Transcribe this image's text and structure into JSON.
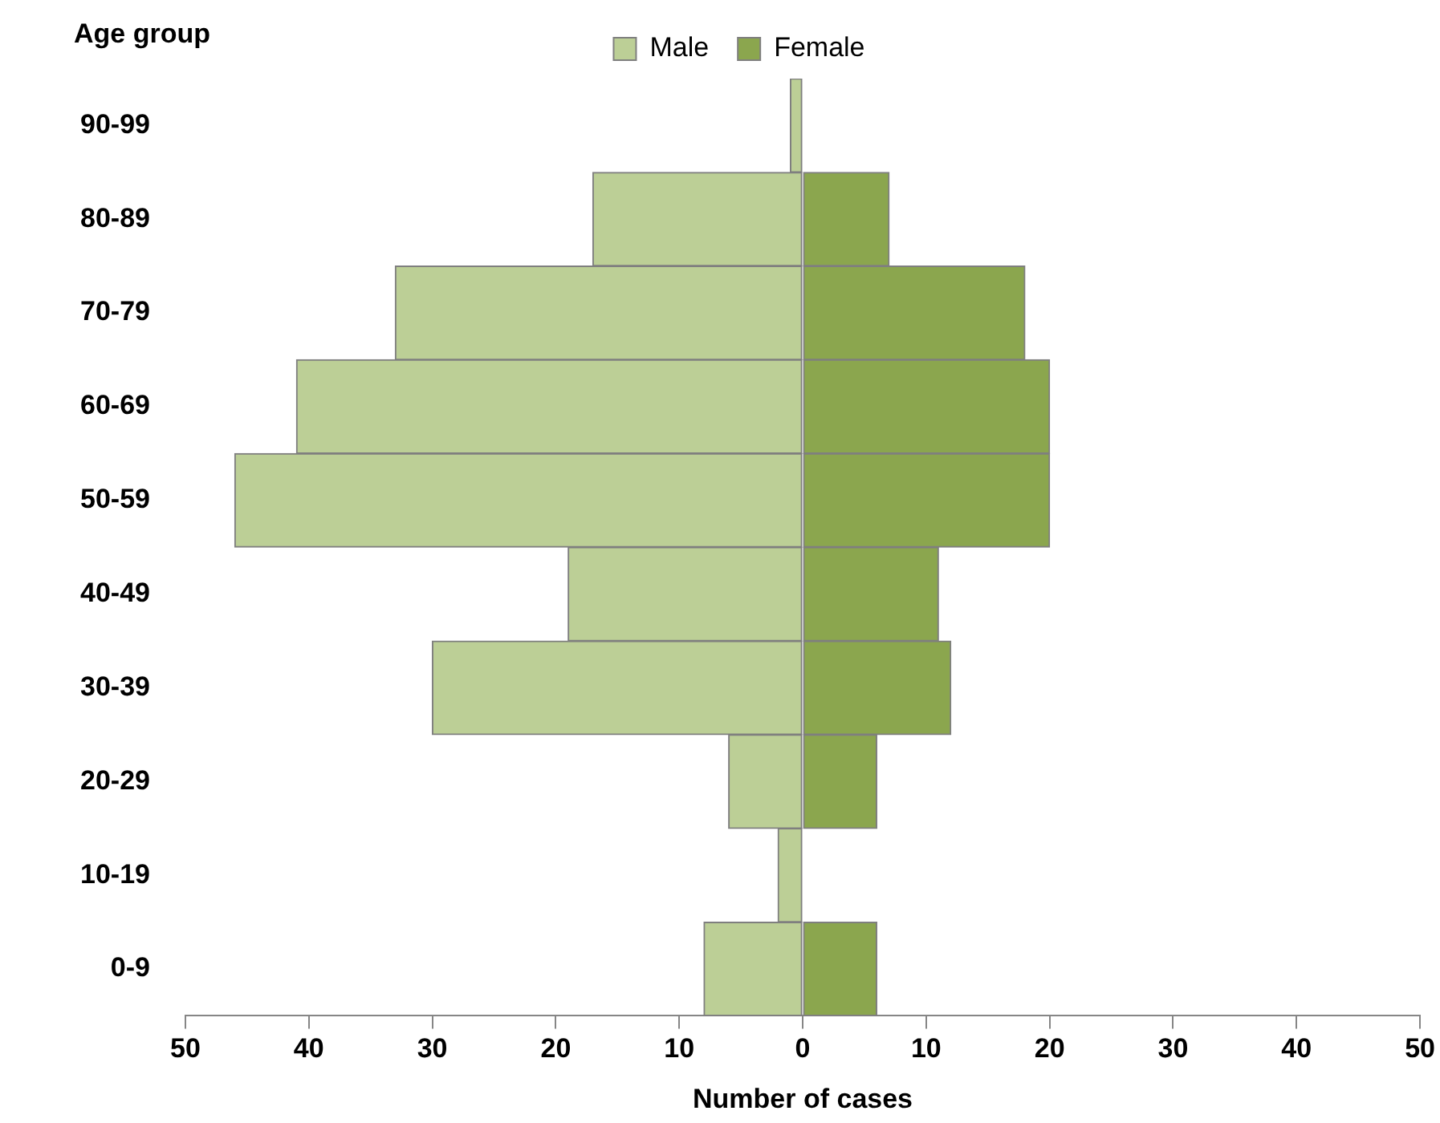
{
  "chart_data": {
    "type": "bar",
    "orientation": "horizontal",
    "stacked": true,
    "ylabel": "Age group",
    "xlabel": "Number of cases",
    "categories": [
      "90-99",
      "80-89",
      "70-79",
      "60-69",
      "50-59",
      "40-49",
      "30-39",
      "20-29",
      "10-19",
      "0-9"
    ],
    "series": [
      {
        "name": "Male",
        "color": "#bccf96",
        "values": [
          -1,
          -17,
          -33,
          -41,
          -46,
          -19,
          -30,
          -6,
          -2,
          -8
        ]
      },
      {
        "name": "Female",
        "color": "#8ba64e",
        "values": [
          0,
          7,
          18,
          20,
          20,
          11,
          12,
          6,
          0,
          6
        ]
      }
    ],
    "xlim": [
      -50,
      50
    ],
    "xticks": [
      {
        "value": -50,
        "label": "50"
      },
      {
        "value": -40,
        "label": "40"
      },
      {
        "value": -30,
        "label": "30"
      },
      {
        "value": -20,
        "label": "20"
      },
      {
        "value": -10,
        "label": "10"
      },
      0,
      10,
      20,
      30,
      40,
      50
    ],
    "grid": false,
    "legend": "top"
  }
}
